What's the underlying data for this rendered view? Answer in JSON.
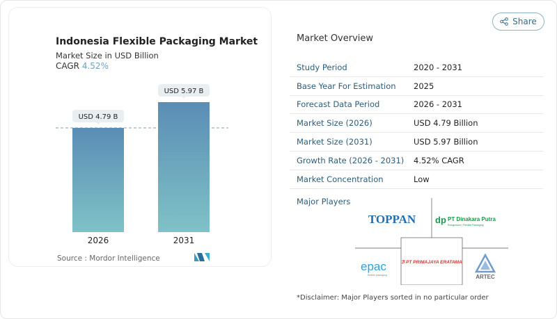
{
  "chart_data": {
    "type": "bar",
    "title": "Indonesia Flexible Packaging Market",
    "subtitle": "Market Size in USD Billion",
    "cagr_label": "CAGR",
    "cagr_value": "4.52%",
    "categories": [
      "2026",
      "2031"
    ],
    "values": [
      4.79,
      5.97
    ],
    "data_labels": [
      "USD 4.79 B",
      "USD 5.97 B"
    ],
    "ylim": [
      0,
      6.5
    ],
    "grid": false,
    "reference_line": 4.79,
    "colors": {
      "bar_top": "#5b8db5",
      "bar_bottom": "#7fc2c7",
      "cagr": "#6fa3c0"
    },
    "source": "Source :  Mordor Intelligence"
  },
  "share": {
    "label": "Share",
    "icon": "share-icon"
  },
  "overview": {
    "title": "Market Overview",
    "rows": [
      {
        "k": "Study Period",
        "v": "2020 - 2031"
      },
      {
        "k": "Base Year For Estimation",
        "v": "2025"
      },
      {
        "k": "Forecast Data Period",
        "v": "2026 - 2031"
      },
      {
        "k": "Market Size (2026)",
        "v": "USD 4.79 Billion"
      },
      {
        "k": "Market Size (2031)",
        "v": "USD 5.97 Billion"
      },
      {
        "k": "Growth Rate (2026 - 2031)",
        "v": "4.52% CAGR"
      },
      {
        "k": "Market Concentration",
        "v": "Low"
      }
    ]
  },
  "players": {
    "title": "Major Players",
    "logos": [
      "TOPPAN",
      "PT Dinakara Putra",
      "PT PRIMAJAYA ERATAMA",
      "epac",
      "ARTEC"
    ],
    "dinakara_tagline": "Rotogravure | Flexible Packaging",
    "epac_tagline": "flexible packaging"
  },
  "disclaimer": "*Disclaimer: Major Players sorted in no particular order"
}
